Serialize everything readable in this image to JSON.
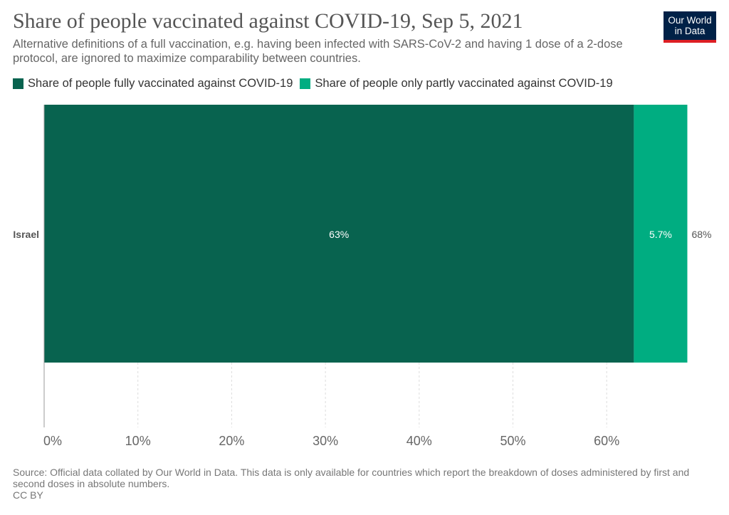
{
  "header": {
    "title": "Share of people vaccinated against COVID-19, Sep 5, 2021",
    "subtitle": "Alternative definitions of a full vaccination, e.g. having been infected with SARS-CoV-2 and having 1 dose of a 2-dose protocol, are ignored to maximize comparability between countries.",
    "logo_line1": "Our World",
    "logo_line2": "in Data"
  },
  "colors": {
    "fully": "#08634f",
    "partly": "#00ad81",
    "logo_bg": "#002147",
    "logo_accent": "#dd1f24"
  },
  "chart_data": {
    "type": "bar",
    "orientation": "horizontal",
    "stacked": true,
    "categories": [
      "Israel"
    ],
    "series": [
      {
        "name": "Share of people fully vaccinated against COVID-19",
        "values": [
          62.9
        ],
        "labels": [
          "63%"
        ]
      },
      {
        "name": "Share of people only partly vaccinated against COVID-19",
        "values": [
          5.7
        ],
        "labels": [
          "5.7%"
        ]
      }
    ],
    "totals": [
      "68%"
    ],
    "xlim": [
      0,
      70
    ],
    "xticks": [
      0,
      10,
      20,
      30,
      40,
      50,
      60
    ],
    "xtick_labels": [
      "0%",
      "10%",
      "20%",
      "30%",
      "40%",
      "50%",
      "60%"
    ],
    "grid": "vertical dashed",
    "legend": "top"
  },
  "footer": {
    "source": "Source: Official data collated by Our World in Data. This data is only available for countries which report the breakdown of doses administered by first and second doses in absolute numbers.",
    "license": "CC BY"
  }
}
